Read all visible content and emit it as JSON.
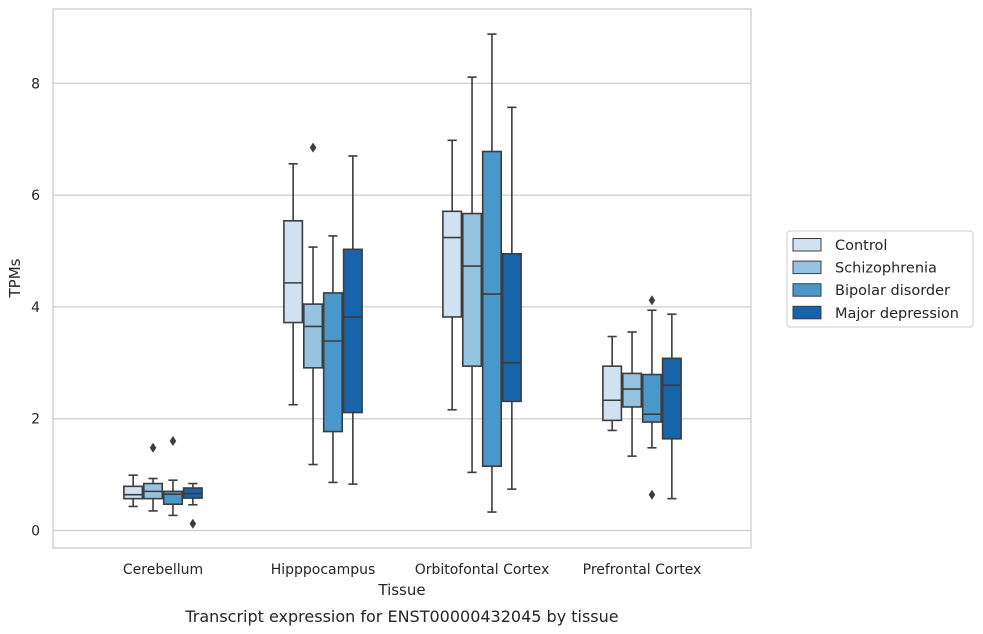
{
  "chart_data": {
    "type": "box",
    "xlabel": "Tissue",
    "ylabel": "TPMs",
    "caption": "Transcript expression for ENST00000432045 by tissue",
    "ylim": [
      -0.3,
      9.35
    ],
    "yticks": [
      0,
      2,
      4,
      6,
      8
    ],
    "grid": true,
    "legend_position": "right",
    "categories": [
      "Cerebellum",
      "Hipppocampus",
      "Orbitofontal Cortex",
      "Prefrontal Cortex"
    ],
    "series": [
      {
        "name": "Control",
        "color": "#d0e1f2",
        "boxes": [
          {
            "whislo": 0.43,
            "q1": 0.57,
            "med": 0.64,
            "q3": 0.79,
            "whishi": 0.99,
            "fliers": []
          },
          {
            "whislo": 2.25,
            "q1": 3.72,
            "med": 4.43,
            "q3": 5.54,
            "whishi": 6.56,
            "fliers": []
          },
          {
            "whislo": 2.16,
            "q1": 3.82,
            "med": 5.24,
            "q3": 5.71,
            "whishi": 6.98,
            "fliers": []
          },
          {
            "whislo": 1.79,
            "q1": 1.97,
            "med": 2.33,
            "q3": 2.94,
            "whishi": 3.47,
            "fliers": []
          }
        ]
      },
      {
        "name": "Schizophrenia",
        "color": "#94c4df",
        "boxes": [
          {
            "whislo": 0.35,
            "q1": 0.57,
            "med": 0.7,
            "q3": 0.84,
            "whishi": 0.93,
            "fliers": [
              1.48
            ]
          },
          {
            "whislo": 1.18,
            "q1": 2.91,
            "med": 3.65,
            "q3": 4.05,
            "whishi": 5.07,
            "fliers": [
              6.85
            ]
          },
          {
            "whislo": 1.04,
            "q1": 2.94,
            "med": 4.73,
            "q3": 5.67,
            "whishi": 8.11,
            "fliers": []
          },
          {
            "whislo": 1.33,
            "q1": 2.21,
            "med": 2.53,
            "q3": 2.81,
            "whishi": 3.55,
            "fliers": []
          }
        ]
      },
      {
        "name": "Bipolar disorder",
        "color": "#4a98c9",
        "boxes": [
          {
            "whislo": 0.27,
            "q1": 0.47,
            "med": 0.65,
            "q3": 0.7,
            "whishi": 0.9,
            "fliers": [
              1.6
            ]
          },
          {
            "whislo": 0.86,
            "q1": 1.77,
            "med": 3.39,
            "q3": 4.25,
            "whishi": 5.27,
            "fliers": []
          },
          {
            "whislo": 0.33,
            "q1": 1.15,
            "med": 4.23,
            "q3": 6.78,
            "whishi": 8.88,
            "fliers": []
          },
          {
            "whislo": 1.48,
            "q1": 1.94,
            "med": 2.08,
            "q3": 2.79,
            "whishi": 3.94,
            "fliers": [
              4.12,
              0.64
            ]
          }
        ]
      },
      {
        "name": "Major depression",
        "color": "#1764ab",
        "boxes": [
          {
            "whislo": 0.46,
            "q1": 0.58,
            "med": 0.66,
            "q3": 0.76,
            "whishi": 0.84,
            "fliers": [
              0.12
            ]
          },
          {
            "whislo": 0.83,
            "q1": 2.11,
            "med": 3.82,
            "q3": 5.03,
            "whishi": 6.7,
            "fliers": []
          },
          {
            "whislo": 0.74,
            "q1": 2.31,
            "med": 3.0,
            "q3": 4.95,
            "whishi": 7.57,
            "fliers": []
          },
          {
            "whislo": 0.57,
            "q1": 1.64,
            "med": 2.6,
            "q3": 3.08,
            "whishi": 3.87,
            "fliers": []
          }
        ]
      }
    ]
  }
}
